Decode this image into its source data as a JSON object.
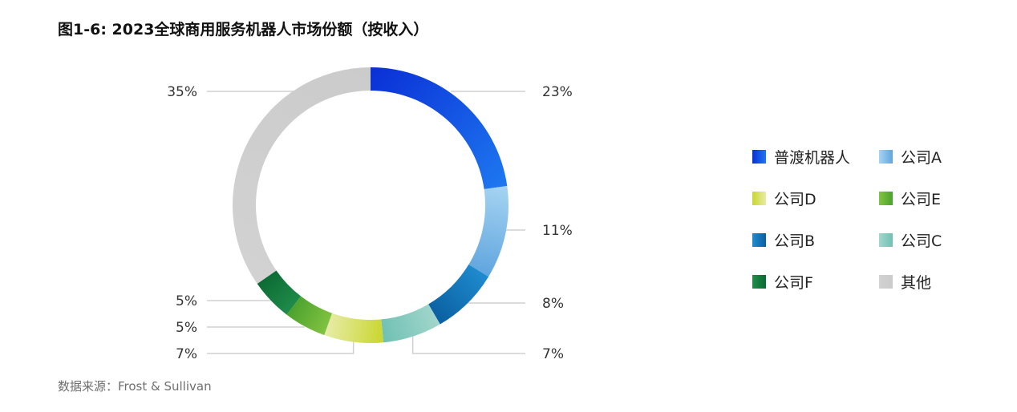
{
  "title": "图1-6: 2023全球商用服务机器人市场份额（按收入）",
  "source": "数据来源：Frost & Sullivan",
  "chart_data": {
    "type": "pie",
    "donut": true,
    "legend_position": "right",
    "slices": [
      {
        "name": "普渡机器人",
        "value": 23,
        "label": "23%",
        "color_start": "#0a2fd6",
        "color_end": "#1e78f0"
      },
      {
        "name": "公司A",
        "value": 11,
        "label": "11%",
        "color_start": "#a6d4f2",
        "color_end": "#5fa5de"
      },
      {
        "name": "公司B",
        "value": 8,
        "label": "8%",
        "color_start": "#1f8ccf",
        "color_end": "#0a5fa0"
      },
      {
        "name": "公司C",
        "value": 7,
        "label": "7%",
        "color_start": "#a2d6cc",
        "color_end": "#6fc0b3"
      },
      {
        "name": "公司D",
        "value": 7,
        "label": "7%",
        "color_start": "#c9d62c",
        "color_end": "#e8ecaa"
      },
      {
        "name": "公司E",
        "value": 5,
        "label": "5%",
        "color_start": "#82c341",
        "color_end": "#4aa12e"
      },
      {
        "name": "公司F",
        "value": 5,
        "label": "5%",
        "color_start": "#1f8c4a",
        "color_end": "#0c6a33"
      },
      {
        "name": "其他",
        "value": 35,
        "label": "35%",
        "color_start": "#d2d2d2",
        "color_end": "#cbcbcb"
      }
    ],
    "legend_order": [
      "普渡机器人",
      "公司A",
      "公司D",
      "公司E",
      "公司B",
      "公司C",
      "公司F",
      "其他"
    ]
  }
}
